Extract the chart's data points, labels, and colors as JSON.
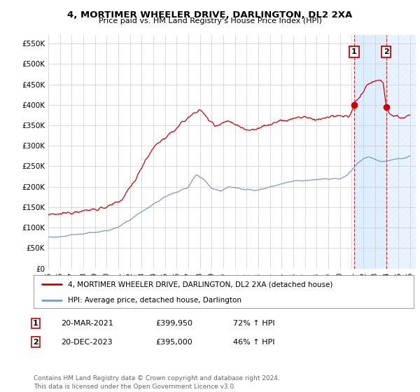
{
  "title": "4, MORTIMER WHEELER DRIVE, DARLINGTON, DL2 2XA",
  "subtitle": "Price paid vs. HM Land Registry's House Price Index (HPI)",
  "ylabel_ticks": [
    "£0",
    "£50K",
    "£100K",
    "£150K",
    "£200K",
    "£250K",
    "£300K",
    "£350K",
    "£400K",
    "£450K",
    "£500K",
    "£550K"
  ],
  "ytick_vals": [
    0,
    50000,
    100000,
    150000,
    200000,
    250000,
    300000,
    350000,
    400000,
    450000,
    500000,
    550000
  ],
  "ylim": [
    0,
    570000
  ],
  "xlim_start": 1995.0,
  "xlim_end": 2026.5,
  "xtick_years": [
    1995,
    1996,
    1997,
    1998,
    1999,
    2000,
    2001,
    2002,
    2003,
    2004,
    2005,
    2006,
    2007,
    2008,
    2009,
    2010,
    2011,
    2012,
    2013,
    2014,
    2015,
    2016,
    2017,
    2018,
    2019,
    2020,
    2021,
    2022,
    2023,
    2024,
    2025,
    2026
  ],
  "line1_color": "#cc0000",
  "line2_color": "#7799cc",
  "shade_color": "#ddeeff",
  "vline_color": "#dd3333",
  "transaction1_x": 2021.22,
  "transaction1_y": 399950,
  "transaction2_x": 2023.97,
  "transaction2_y": 395000,
  "legend_line1": "4, MORTIMER WHEELER DRIVE, DARLINGTON, DL2 2XA (detached house)",
  "legend_line2": "HPI: Average price, detached house, Darlington",
  "table_rows": [
    {
      "num": "1",
      "date": "20-MAR-2021",
      "price": "£399,950",
      "hpi": "72% ↑ HPI"
    },
    {
      "num": "2",
      "date": "20-DEC-2023",
      "price": "£395,000",
      "hpi": "46% ↑ HPI"
    }
  ],
  "footer": "Contains HM Land Registry data © Crown copyright and database right 2024.\nThis data is licensed under the Open Government Licence v3.0.",
  "background_color": "#ffffff",
  "grid_color": "#cccccc",
  "hpi_anchors": [
    [
      1995.0,
      75000
    ],
    [
      1996.0,
      78000
    ],
    [
      1997.0,
      82000
    ],
    [
      1998.0,
      85000
    ],
    [
      1999.0,
      88000
    ],
    [
      2000.0,
      93000
    ],
    [
      2001.0,
      100000
    ],
    [
      2002.0,
      118000
    ],
    [
      2003.0,
      138000
    ],
    [
      2004.0,
      158000
    ],
    [
      2005.0,
      175000
    ],
    [
      2006.0,
      188000
    ],
    [
      2007.0,
      200000
    ],
    [
      2007.7,
      230000
    ],
    [
      2008.3,
      218000
    ],
    [
      2009.0,
      195000
    ],
    [
      2009.8,
      190000
    ],
    [
      2010.5,
      200000
    ],
    [
      2011.0,
      198000
    ],
    [
      2012.0,
      190000
    ],
    [
      2013.0,
      192000
    ],
    [
      2014.0,
      200000
    ],
    [
      2015.0,
      207000
    ],
    [
      2016.0,
      213000
    ],
    [
      2017.0,
      215000
    ],
    [
      2018.0,
      218000
    ],
    [
      2019.0,
      218000
    ],
    [
      2020.0,
      220000
    ],
    [
      2020.5,
      225000
    ],
    [
      2021.0,
      240000
    ],
    [
      2021.5,
      258000
    ],
    [
      2022.0,
      268000
    ],
    [
      2022.5,
      272000
    ],
    [
      2023.0,
      268000
    ],
    [
      2023.5,
      262000
    ],
    [
      2024.0,
      262000
    ],
    [
      2024.5,
      265000
    ],
    [
      2025.0,
      268000
    ],
    [
      2025.5,
      270000
    ],
    [
      2026.0,
      272000
    ]
  ],
  "prop_anchors": [
    [
      1995.0,
      132000
    ],
    [
      1995.5,
      130000
    ],
    [
      1996.0,
      133000
    ],
    [
      1996.5,
      135000
    ],
    [
      1997.0,
      138000
    ],
    [
      1997.5,
      142000
    ],
    [
      1998.0,
      140000
    ],
    [
      1998.5,
      143000
    ],
    [
      1999.0,
      145000
    ],
    [
      1999.5,
      148000
    ],
    [
      2000.0,
      150000
    ],
    [
      2000.5,
      155000
    ],
    [
      2001.0,
      162000
    ],
    [
      2001.5,
      175000
    ],
    [
      2002.0,
      200000
    ],
    [
      2002.5,
      220000
    ],
    [
      2003.0,
      248000
    ],
    [
      2003.5,
      270000
    ],
    [
      2004.0,
      295000
    ],
    [
      2004.5,
      310000
    ],
    [
      2005.0,
      318000
    ],
    [
      2005.5,
      328000
    ],
    [
      2006.0,
      345000
    ],
    [
      2006.5,
      358000
    ],
    [
      2007.0,
      368000
    ],
    [
      2007.5,
      380000
    ],
    [
      2007.9,
      390000
    ],
    [
      2008.3,
      378000
    ],
    [
      2008.8,
      362000
    ],
    [
      2009.3,
      350000
    ],
    [
      2009.8,
      355000
    ],
    [
      2010.3,
      360000
    ],
    [
      2010.8,
      358000
    ],
    [
      2011.3,
      348000
    ],
    [
      2011.8,
      342000
    ],
    [
      2012.3,
      340000
    ],
    [
      2012.8,
      342000
    ],
    [
      2013.3,
      345000
    ],
    [
      2013.8,
      350000
    ],
    [
      2014.3,
      355000
    ],
    [
      2014.8,
      358000
    ],
    [
      2015.3,
      362000
    ],
    [
      2015.8,
      365000
    ],
    [
      2016.3,
      368000
    ],
    [
      2016.8,
      370000
    ],
    [
      2017.3,
      368000
    ],
    [
      2017.8,
      365000
    ],
    [
      2018.3,
      365000
    ],
    [
      2018.8,
      368000
    ],
    [
      2019.3,
      370000
    ],
    [
      2019.8,
      372000
    ],
    [
      2020.3,
      370000
    ],
    [
      2020.8,
      375000
    ],
    [
      2021.22,
      399950
    ],
    [
      2021.5,
      412000
    ],
    [
      2021.8,
      425000
    ],
    [
      2022.2,
      440000
    ],
    [
      2022.5,
      452000
    ],
    [
      2022.8,
      458000
    ],
    [
      2023.2,
      460000
    ],
    [
      2023.5,
      462000
    ],
    [
      2023.7,
      455000
    ],
    [
      2023.97,
      395000
    ],
    [
      2024.2,
      380000
    ],
    [
      2024.5,
      375000
    ],
    [
      2024.8,
      372000
    ],
    [
      2025.2,
      370000
    ],
    [
      2025.5,
      368000
    ],
    [
      2025.8,
      370000
    ],
    [
      2026.0,
      370000
    ]
  ]
}
